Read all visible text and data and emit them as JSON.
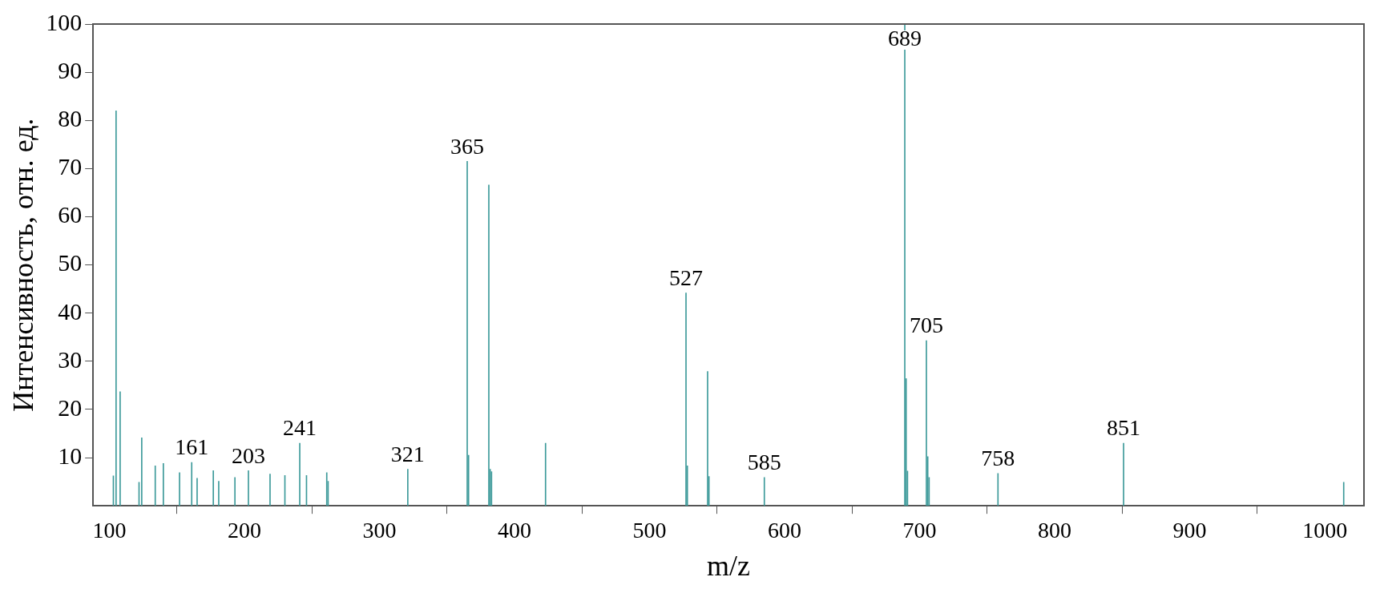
{
  "chart_data": {
    "type": "bar",
    "xlabel": "m/z",
    "ylabel": "Интенсивность, отн. ед.",
    "x": [
      103,
      105,
      108,
      122,
      124,
      134,
      140,
      152,
      161,
      165,
      177,
      181,
      193,
      203,
      219,
      230,
      241,
      246,
      261,
      262,
      321,
      365,
      366,
      381,
      382,
      383,
      423,
      527,
      528,
      543,
      544,
      585,
      689,
      690,
      691,
      705,
      706,
      707,
      758,
      851,
      1014
    ],
    "series": [
      {
        "color": "#3d9a9a",
        "values": [
          6.2,
          82,
          23.7,
          4.9,
          14.1,
          8.3,
          8.8,
          6.9,
          9,
          5.7,
          7.3,
          5.1,
          5.9,
          7.3,
          6.6,
          6.3,
          13,
          6.3,
          6.9,
          5.1,
          7.6,
          71.5,
          10.5,
          66.6,
          7.6,
          7.1,
          13,
          44.2,
          8.3,
          27.9,
          6.1,
          5.9,
          100,
          26.4,
          7.2,
          34.3,
          10.2,
          5.9,
          6.7,
          13,
          4.9
        ]
      }
    ],
    "xlim": [
      88,
      1029
    ],
    "xticks": [
      100,
      200,
      300,
      400,
      500,
      600,
      700,
      800,
      900,
      1000
    ],
    "ylim": [
      0,
      100
    ],
    "yticks": [
      10,
      20,
      30,
      40,
      50,
      60,
      70,
      80,
      90,
      100
    ],
    "grid": false,
    "annotations": [
      {
        "text": "161",
        "x": 161,
        "y": 9
      },
      {
        "text": "203",
        "x": 203,
        "y": 7.3
      },
      {
        "text": "241",
        "x": 241,
        "y": 13
      },
      {
        "text": "321",
        "x": 321,
        "y": 7.6
      },
      {
        "text": "365",
        "x": 365,
        "y": 71.5
      },
      {
        "text": "527",
        "x": 527,
        "y": 44.2
      },
      {
        "text": "585",
        "x": 585,
        "y": 5.9
      },
      {
        "text": "689",
        "x": 689,
        "y": 100
      },
      {
        "text": "705",
        "x": 705,
        "y": 34.3
      },
      {
        "text": "758",
        "x": 758,
        "y": 6.7
      },
      {
        "text": "851",
        "x": 851,
        "y": 13
      }
    ]
  }
}
